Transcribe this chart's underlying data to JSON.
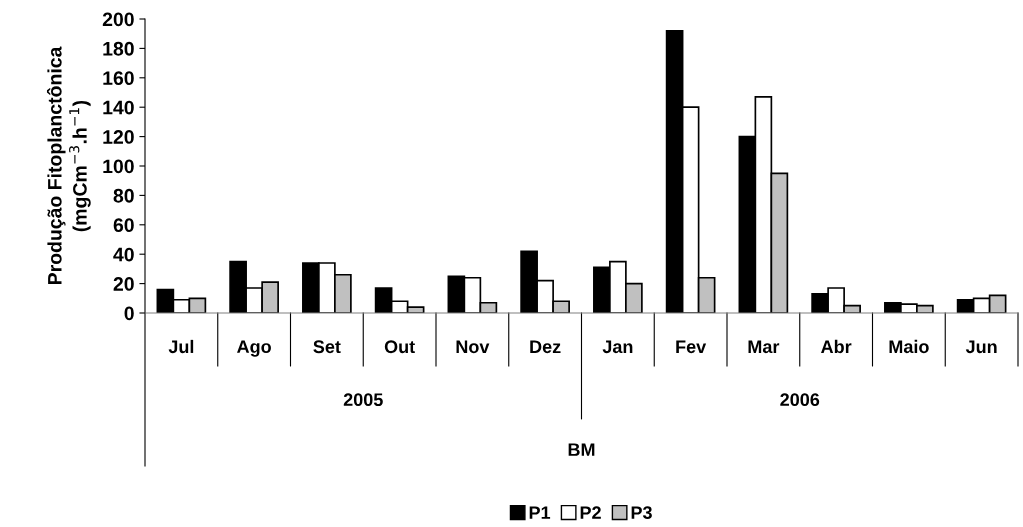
{
  "chart_data": {
    "type": "bar",
    "categories": [
      "Jul",
      "Ago",
      "Set",
      "Out",
      "Nov",
      "Dez",
      "Jan",
      "Fev",
      "Mar",
      "Abr",
      "Maio",
      "Jun"
    ],
    "series": [
      {
        "name": "P1",
        "color": "#000000",
        "values": [
          16,
          35,
          34,
          17,
          25,
          42,
          31,
          192,
          120,
          13,
          7,
          9
        ]
      },
      {
        "name": "P2",
        "color": "#ffffff",
        "values": [
          9,
          17,
          34,
          8,
          24,
          22,
          35,
          140,
          147,
          17,
          6,
          10
        ]
      },
      {
        "name": "P3",
        "color": "#c0c0c0",
        "values": [
          10,
          21,
          26,
          4,
          7,
          8,
          20,
          24,
          95,
          5,
          5,
          12
        ]
      }
    ],
    "ylabel": "Produção Fitoplanctônica\n(mgCm$^{−3}$.h$^{−1}$)",
    "xlabel": "BM",
    "annotations": [
      "2005",
      "2006"
    ],
    "ylim": [
      0,
      200
    ],
    "yticks": [
      0,
      20,
      40,
      60,
      80,
      100,
      120,
      140,
      160,
      180,
      200
    ],
    "grid": false,
    "legend": "bottom"
  }
}
